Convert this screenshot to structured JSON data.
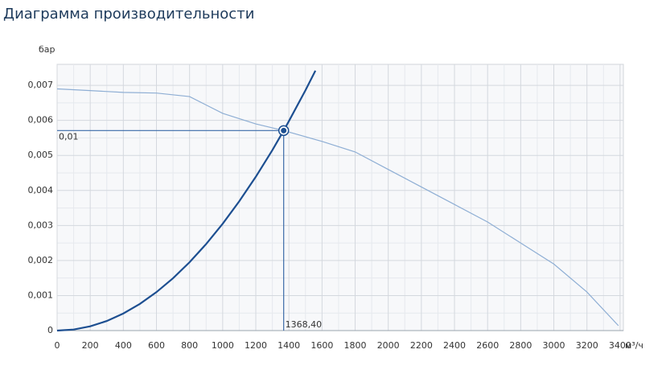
{
  "chart_data": {
    "type": "line",
    "title": "Диаграмма производительности",
    "y_label": "бар",
    "x_label": "м³/ч",
    "xlim": [
      0,
      3420
    ],
    "ylim": [
      0,
      0.0076
    ],
    "xticks": [
      0,
      200,
      400,
      600,
      800,
      1000,
      1200,
      1400,
      1600,
      1800,
      2000,
      2200,
      2400,
      2600,
      2800,
      3000,
      3200,
      3400
    ],
    "yticks": [
      0,
      {
        "value": 0.001,
        "label": "0,001"
      },
      {
        "value": 0.002,
        "label": "0,002"
      },
      {
        "value": 0.003,
        "label": "0,003"
      },
      {
        "value": 0.004,
        "label": "0,004"
      },
      {
        "value": 0.005,
        "label": "0,005"
      },
      {
        "value": 0.006,
        "label": "0,006"
      },
      {
        "value": 0.007,
        "label": "0,007"
      }
    ],
    "grid": true,
    "minor_grid": true,
    "series": [
      {
        "color": "#8eaed4",
        "width": 1.2,
        "x": [
          0,
          200,
          400,
          600,
          800,
          1000,
          1200,
          1368.4,
          1600,
          1800,
          2000,
          2200,
          2400,
          2600,
          2800,
          3000,
          3200,
          3390
        ],
        "values": [
          0.0069,
          0.00685,
          0.0068,
          0.00678,
          0.00668,
          0.0062,
          0.0059,
          0.00571,
          0.0054,
          0.0051,
          0.0046,
          0.0041,
          0.0036,
          0.0031,
          0.0025,
          0.0019,
          0.0011,
          0.00014
        ]
      },
      {
        "color": "#1d4f91",
        "width": 2.2,
        "x": [
          0,
          100,
          200,
          300,
          400,
          500,
          600,
          700,
          800,
          900,
          1000,
          1100,
          1200,
          1300,
          1368.4,
          1400,
          1500,
          1560
        ],
        "values": [
          0,
          3e-05,
          0.000122,
          0.000274,
          0.000488,
          0.000762,
          0.001098,
          0.001494,
          0.001951,
          0.00247,
          0.00305,
          0.00369,
          0.00439,
          0.00515,
          0.00571,
          0.00598,
          0.00686,
          0.00742
        ]
      }
    ],
    "point": {
      "x": 1368.4,
      "y": 0.00571,
      "x_label": "1368,40",
      "y_label": "0,01",
      "color": "#1d4f91"
    }
  }
}
